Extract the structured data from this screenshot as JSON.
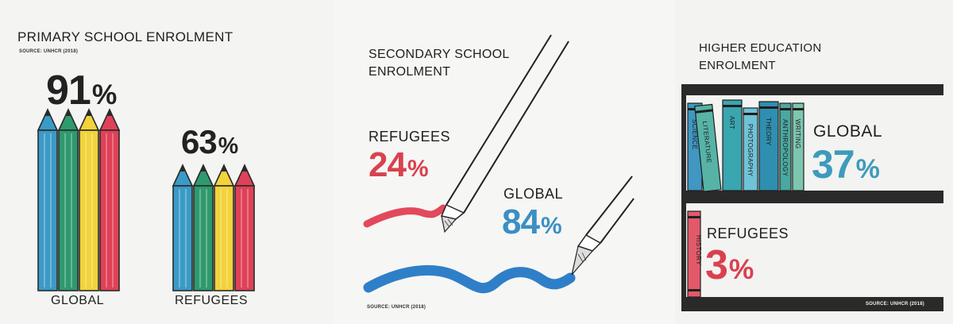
{
  "panels": {
    "primary": {
      "title": "PRIMARY SCHOOL ENROLMENT",
      "source": "SOURCE: UNHCR (2018)",
      "global": {
        "label": "GLOBAL",
        "value": "91",
        "unit": "%"
      },
      "refugees": {
        "label": "REFUGEES",
        "value": "63",
        "unit": "%"
      },
      "pencil_colors": [
        "#3a9bc6",
        "#2e9a6e",
        "#f2d33a",
        "#df4158"
      ]
    },
    "secondary": {
      "title_line1": "SECONDARY SCHOOL",
      "title_line2": "ENROLMENT",
      "source": "SOURCE: UNHCR (2018)",
      "refugees": {
        "label": "REFUGEES",
        "value": "24",
        "unit": "%",
        "color": "#d9414f"
      },
      "global": {
        "label": "GLOBAL",
        "value": "84",
        "unit": "%",
        "color": "#3a8fc5"
      }
    },
    "higher": {
      "title_line1": "HIGHER EDUCATION",
      "title_line2": "ENROLMENT",
      "source": "SOURCE: UNHCR (2018)",
      "global": {
        "label": "GLOBAL",
        "value": "37",
        "unit": "%",
        "color": "#3d9bbc"
      },
      "refugees": {
        "label": "REFUGEES",
        "value": "3",
        "unit": "%",
        "color": "#d9414f"
      },
      "books": [
        "SCIENCE",
        "LITERATURE",
        "ART",
        "PHOTOGRAPHY",
        "THEORY",
        "ANTHROPOLOGY",
        "WRITING"
      ],
      "refugee_book": "HISTORY"
    }
  }
}
